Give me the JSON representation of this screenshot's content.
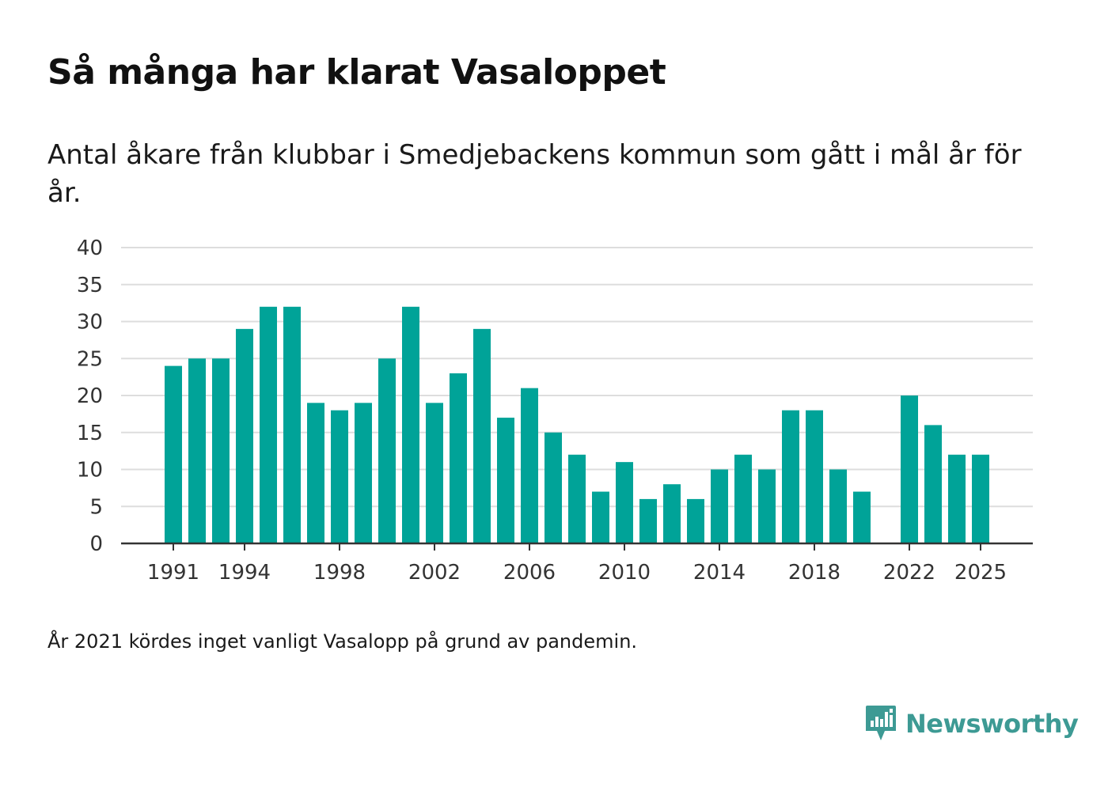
{
  "title": "Så många har klarat Vasaloppet",
  "subtitle": "Antal åkare från klubbar i Smedjebackens kommun som gått i mål år för år.",
  "footnote": "År 2021 kördes inget vanligt Vasalopp på grund av pandemin.",
  "brand": {
    "name": "Newsworthy",
    "icon": "newsworthy-logo-icon",
    "color": "#3d9a94"
  },
  "colors": {
    "bar": "#00a398",
    "grid": "#dddddd",
    "axis": "#333333",
    "tick_text": "#333333"
  },
  "chart_data": {
    "type": "bar",
    "title": "Så många har klarat Vasaloppet",
    "xlabel": "",
    "ylabel": "",
    "ylim": [
      0,
      40
    ],
    "yticks": [
      0,
      5,
      10,
      15,
      20,
      25,
      30,
      35,
      40
    ],
    "grid": true,
    "x_tick_labels": [
      "1991",
      "1994",
      "1998",
      "2002",
      "2006",
      "2010",
      "2014",
      "2018",
      "2022",
      "2025"
    ],
    "categories": [
      "1991",
      "1992",
      "1993",
      "1994",
      "1995",
      "1996",
      "1997",
      "1998",
      "1999",
      "2000",
      "2001",
      "2002",
      "2003",
      "2004",
      "2005",
      "2006",
      "2007",
      "2008",
      "2009",
      "2010",
      "2011",
      "2012",
      "2013",
      "2014",
      "2015",
      "2016",
      "2017",
      "2018",
      "2019",
      "2020",
      "2021",
      "2022",
      "2023",
      "2024",
      "2025"
    ],
    "values": [
      24,
      25,
      25,
      29,
      32,
      32,
      19,
      18,
      19,
      25,
      32,
      19,
      23,
      29,
      17,
      21,
      15,
      12,
      7,
      11,
      6,
      8,
      6,
      10,
      12,
      10,
      18,
      18,
      10,
      7,
      null,
      20,
      16,
      12,
      12
    ]
  }
}
